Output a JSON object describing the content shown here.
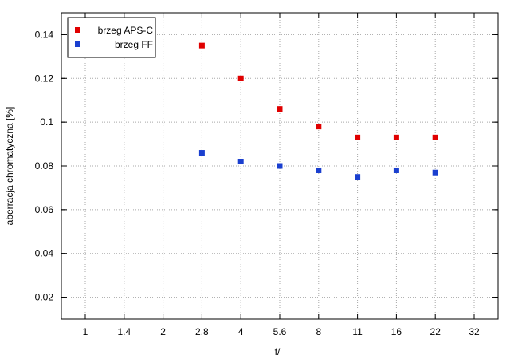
{
  "chart_data": {
    "type": "scatter",
    "xlabel": "f/",
    "ylabel": "aberracja chromatyczna [%]",
    "x_ticks": [
      "1",
      "1.4",
      "2",
      "2.8",
      "4",
      "5.6",
      "8",
      "11",
      "16",
      "22",
      "32"
    ],
    "ylim": [
      0.01,
      0.15
    ],
    "y_ticks": [
      "0.02",
      "0.04",
      "0.06",
      "0.08",
      "0.1",
      "0.12",
      "0.14"
    ],
    "grid": true,
    "legend_position": "top-left",
    "series": [
      {
        "name": "brzeg APS-C",
        "color": "#e00000",
        "points": [
          {
            "x": "2.8",
            "y": 0.135
          },
          {
            "x": "4",
            "y": 0.12
          },
          {
            "x": "5.6",
            "y": 0.106
          },
          {
            "x": "8",
            "y": 0.098
          },
          {
            "x": "11",
            "y": 0.093
          },
          {
            "x": "16",
            "y": 0.093
          },
          {
            "x": "22",
            "y": 0.093
          }
        ]
      },
      {
        "name": "brzeg FF",
        "color": "#1a3fcf",
        "points": [
          {
            "x": "2.8",
            "y": 0.086
          },
          {
            "x": "4",
            "y": 0.082
          },
          {
            "x": "5.6",
            "y": 0.08
          },
          {
            "x": "8",
            "y": 0.078
          },
          {
            "x": "11",
            "y": 0.075
          },
          {
            "x": "16",
            "y": 0.078
          },
          {
            "x": "22",
            "y": 0.077
          }
        ]
      }
    ]
  }
}
